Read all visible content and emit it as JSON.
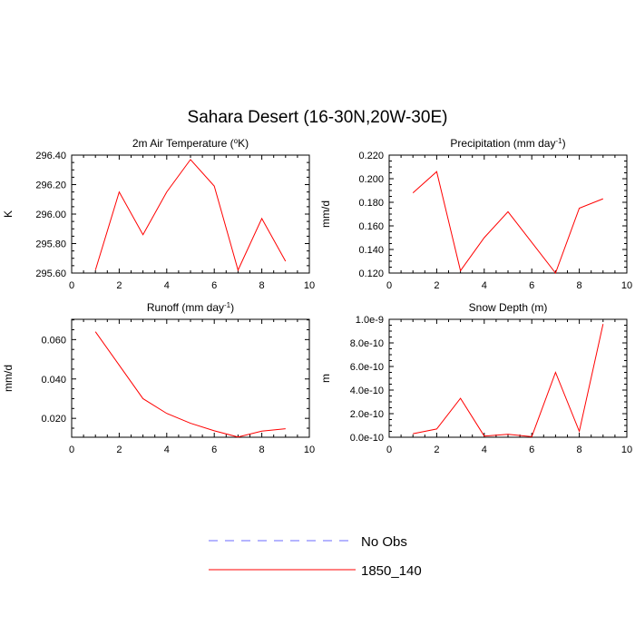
{
  "title": "Sahara Desert (16-30N,20W-30E)",
  "legend": [
    {
      "label": "No Obs",
      "color": "#6a6aff",
      "style": "dashed"
    },
    {
      "label": "1850_140",
      "color": "#ff0000",
      "style": "solid"
    }
  ],
  "chart_data": [
    {
      "type": "line",
      "title": "2m Air Temperature (°K)",
      "title_parts": [
        "2m Air Temperature (",
        "o",
        "K)"
      ],
      "ylabel": "K",
      "xlim": [
        0,
        10
      ],
      "ylim": [
        295.6,
        296.4
      ],
      "xticks": [
        "0",
        "2",
        "4",
        "6",
        "8",
        "10"
      ],
      "yticks": [
        "295.60",
        "295.80",
        "296.00",
        "296.20",
        "296.40"
      ],
      "series": [
        {
          "x": [
            1,
            2,
            3,
            4,
            5,
            6,
            7,
            8,
            9
          ],
          "values": [
            295.62,
            296.15,
            295.86,
            296.15,
            296.37,
            296.19,
            295.62,
            295.97,
            295.68
          ]
        }
      ]
    },
    {
      "type": "line",
      "title": "Precipitation (mm day-1)",
      "title_parts": [
        "Precipitation (mm day",
        "-1",
        ")"
      ],
      "ylabel": "mm/d",
      "xlim": [
        0,
        10
      ],
      "ylim": [
        0.12,
        0.22
      ],
      "xticks": [
        "0",
        "2",
        "4",
        "6",
        "8",
        "10"
      ],
      "yticks": [
        "0.120",
        "0.140",
        "0.160",
        "0.180",
        "0.200",
        "0.220"
      ],
      "series": [
        {
          "x": [
            1,
            2,
            3,
            4,
            5,
            6,
            7,
            8,
            9
          ],
          "values": [
            0.188,
            0.206,
            0.122,
            0.15,
            0.172,
            0.146,
            0.12,
            0.175,
            0.183
          ]
        }
      ]
    },
    {
      "type": "line",
      "title": "Runoff (mm day-1)",
      "title_parts": [
        "Runoff (mm day",
        "-1",
        ")"
      ],
      "ylabel": "mm/d",
      "xlim": [
        0,
        10
      ],
      "ylim": [
        0.0104,
        0.0703
      ],
      "xticks": [
        "0",
        "2",
        "4",
        "6",
        "8",
        "10"
      ],
      "yticks": [
        "0.020",
        "0.040",
        "0.060"
      ],
      "series": [
        {
          "x": [
            1,
            2,
            3,
            4,
            5,
            6,
            7,
            8,
            9
          ],
          "values": [
            0.064,
            0.047,
            0.03,
            0.0225,
            0.0175,
            0.0137,
            0.0105,
            0.0135,
            0.0147
          ]
        }
      ]
    },
    {
      "type": "line",
      "title": "Snow Depth (m)",
      "ylabel": "m",
      "xlim": [
        0,
        10
      ],
      "ylim": [
        0,
        1e-09
      ],
      "xticks": [
        "0",
        "2",
        "4",
        "6",
        "8",
        "10"
      ],
      "yticks": [
        "0.0e-10",
        "2.0e-10",
        "4.0e-10",
        "6.0e-10",
        "8.0e-10",
        "1.0e-9"
      ],
      "series": [
        {
          "x": [
            1,
            2,
            3,
            4,
            5,
            6,
            7,
            8,
            9
          ],
          "values": [
            3e-11,
            7e-11,
            3.3e-10,
            1e-11,
            2.5e-11,
            5e-12,
            5.5e-10,
            5e-11,
            9.6e-10
          ]
        }
      ]
    }
  ]
}
